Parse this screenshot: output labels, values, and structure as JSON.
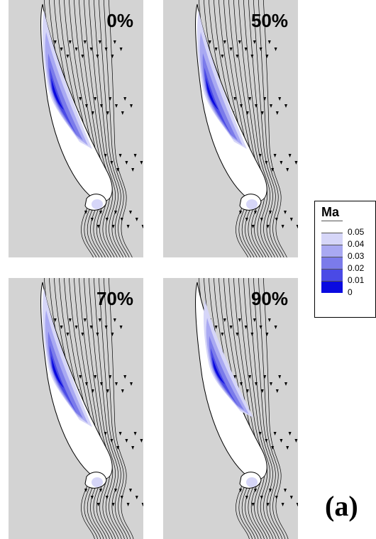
{
  "panels": [
    {
      "label": "0%"
    },
    {
      "label": "50%"
    },
    {
      "label": "70%"
    },
    {
      "label": "90%"
    }
  ],
  "legend": {
    "title": "Ma",
    "levels": [
      {
        "value": "0.05",
        "color": "#ffffff"
      },
      {
        "value": "0.04",
        "color": "#d6d6f8"
      },
      {
        "value": "0.03",
        "color": "#a9a9f2"
      },
      {
        "value": "0.02",
        "color": "#7b7bea"
      },
      {
        "value": "0.01",
        "color": "#4a4ae6"
      },
      {
        "value": "0",
        "color": "#0a0ae0"
      }
    ]
  },
  "figure_label": "(a)",
  "colors": {
    "background": "#d3d3d3",
    "streamline": "#000000"
  }
}
